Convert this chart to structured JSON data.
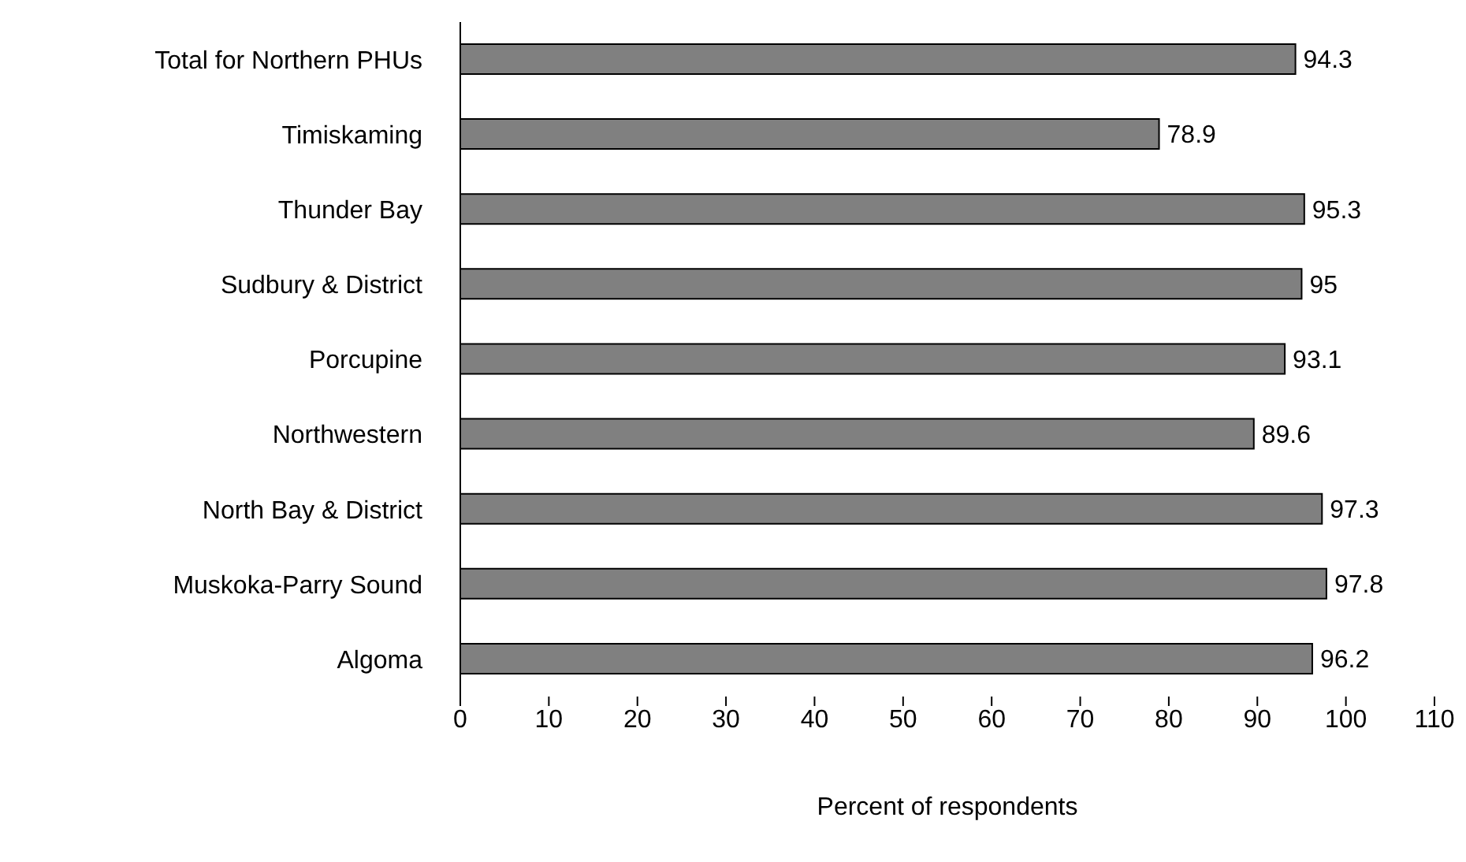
{
  "chart_data": {
    "type": "bar",
    "orientation": "horizontal",
    "xlabel": "Percent of respondents",
    "categories": [
      "Total for Northern PHUs",
      "Timiskaming",
      "Thunder Bay",
      "Sudbury & District",
      "Porcupine",
      "Northwestern",
      "North Bay & District",
      "Muskoka-Parry Sound",
      "Algoma"
    ],
    "values": [
      94.3,
      78.9,
      95.3,
      95,
      93.1,
      89.6,
      97.3,
      97.8,
      96.2
    ],
    "color": "#808080",
    "xlim": [
      0,
      110
    ],
    "xticks": [
      0,
      10,
      20,
      30,
      40,
      50,
      60,
      70,
      80,
      90,
      100,
      110
    ],
    "data_labels": true,
    "grid": false,
    "legend": false
  }
}
